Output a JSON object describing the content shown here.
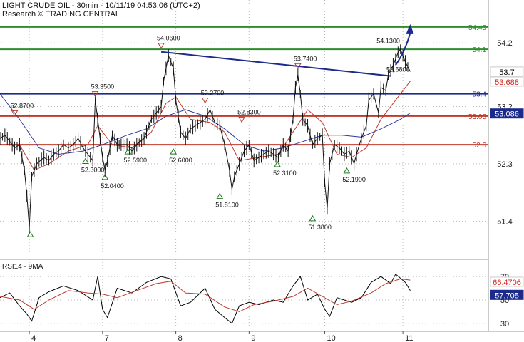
{
  "header": {
    "title": "LIGHT CRUDE OIL - 30min - 10/11/19 04:53:06 (UTC+2)",
    "source": "Research © TRADING CENTRAL"
  },
  "chart_data": [
    {
      "type": "candlestick-line",
      "title": "LIGHT CRUDE OIL - 30min - 10/11/19 04:53:06 (UTC+2)",
      "ylim": [
        50.9,
        54.65
      ],
      "y_ticks": [
        51.4,
        52.3,
        53.2,
        54.2
      ],
      "x_ticks": [
        {
          "label": "4",
          "pos": 0.06
        },
        {
          "label": "7",
          "pos": 0.21
        },
        {
          "label": "8",
          "pos": 0.36
        },
        {
          "label": "9",
          "pos": 0.51
        },
        {
          "label": "10",
          "pos": 0.665
        },
        {
          "label": "11",
          "pos": 0.825
        }
      ],
      "price_path": [
        [
          0.0,
          52.7
        ],
        [
          0.01,
          52.75
        ],
        [
          0.02,
          52.65
        ],
        [
          0.03,
          52.55
        ],
        [
          0.04,
          52.6
        ],
        [
          0.05,
          52.2
        ],
        [
          0.055,
          51.8
        ],
        [
          0.06,
          51.3
        ],
        [
          0.065,
          52.1
        ],
        [
          0.075,
          52.3
        ],
        [
          0.09,
          52.4
        ],
        [
          0.1,
          52.35
        ],
        [
          0.11,
          52.45
        ],
        [
          0.12,
          52.5
        ],
        [
          0.13,
          52.6
        ],
        [
          0.14,
          52.55
        ],
        [
          0.15,
          52.6
        ],
        [
          0.16,
          52.7
        ],
        [
          0.17,
          52.55
        ],
        [
          0.18,
          52.45
        ],
        [
          0.19,
          52.35
        ],
        [
          0.195,
          53.3
        ],
        [
          0.2,
          53.0
        ],
        [
          0.205,
          52.7
        ],
        [
          0.21,
          52.4
        ],
        [
          0.215,
          52.2
        ],
        [
          0.22,
          52.35
        ],
        [
          0.23,
          52.75
        ],
        [
          0.24,
          52.6
        ],
        [
          0.26,
          52.6
        ],
        [
          0.27,
          52.5
        ],
        [
          0.28,
          52.6
        ],
        [
          0.295,
          52.7
        ],
        [
          0.31,
          53.0
        ],
        [
          0.32,
          53.1
        ],
        [
          0.33,
          53.2
        ],
        [
          0.335,
          53.6
        ],
        [
          0.345,
          54.0
        ],
        [
          0.355,
          53.8
        ],
        [
          0.36,
          53.3
        ],
        [
          0.37,
          52.8
        ],
        [
          0.38,
          52.7
        ],
        [
          0.39,
          52.85
        ],
        [
          0.4,
          52.9
        ],
        [
          0.41,
          52.95
        ],
        [
          0.42,
          53.0
        ],
        [
          0.43,
          53.15
        ],
        [
          0.44,
          52.95
        ],
        [
          0.45,
          52.9
        ],
        [
          0.46,
          52.6
        ],
        [
          0.47,
          52.2
        ],
        [
          0.475,
          51.9
        ],
        [
          0.48,
          52.1
        ],
        [
          0.49,
          52.3
        ],
        [
          0.5,
          52.5
        ],
        [
          0.51,
          52.6
        ],
        [
          0.52,
          52.35
        ],
        [
          0.53,
          52.4
        ],
        [
          0.54,
          52.45
        ],
        [
          0.55,
          52.5
        ],
        [
          0.56,
          52.45
        ],
        [
          0.57,
          52.4
        ],
        [
          0.58,
          52.6
        ],
        [
          0.59,
          52.5
        ],
        [
          0.6,
          53.0
        ],
        [
          0.605,
          53.5
        ],
        [
          0.61,
          53.7
        ],
        [
          0.615,
          53.4
        ],
        [
          0.62,
          53.0
        ],
        [
          0.63,
          52.9
        ],
        [
          0.64,
          52.6
        ],
        [
          0.65,
          52.7
        ],
        [
          0.66,
          52.75
        ],
        [
          0.665,
          52.0
        ],
        [
          0.67,
          51.6
        ],
        [
          0.675,
          52.3
        ],
        [
          0.685,
          52.6
        ],
        [
          0.695,
          52.55
        ],
        [
          0.705,
          52.45
        ],
        [
          0.715,
          52.5
        ],
        [
          0.725,
          52.3
        ],
        [
          0.73,
          52.45
        ],
        [
          0.74,
          52.7
        ],
        [
          0.75,
          52.9
        ],
        [
          0.755,
          53.3
        ],
        [
          0.765,
          53.4
        ],
        [
          0.775,
          53.1
        ],
        [
          0.78,
          53.5
        ],
        [
          0.79,
          53.45
        ],
        [
          0.795,
          53.7
        ],
        [
          0.805,
          53.85
        ],
        [
          0.815,
          54.05
        ],
        [
          0.82,
          54.1
        ],
        [
          0.83,
          53.9
        ],
        [
          0.84,
          53.75
        ]
      ],
      "ma_red": [
        [
          0.0,
          52.6
        ],
        [
          0.04,
          52.6
        ],
        [
          0.07,
          52.2
        ],
        [
          0.1,
          52.3
        ],
        [
          0.14,
          52.5
        ],
        [
          0.18,
          52.6
        ],
        [
          0.2,
          52.9
        ],
        [
          0.23,
          52.6
        ],
        [
          0.27,
          52.55
        ],
        [
          0.31,
          52.8
        ],
        [
          0.34,
          53.25
        ],
        [
          0.36,
          53.35
        ],
        [
          0.39,
          53.0
        ],
        [
          0.43,
          52.95
        ],
        [
          0.46,
          52.8
        ],
        [
          0.49,
          52.35
        ],
        [
          0.53,
          52.4
        ],
        [
          0.57,
          52.45
        ],
        [
          0.6,
          52.8
        ],
        [
          0.63,
          53.15
        ],
        [
          0.66,
          52.95
        ],
        [
          0.69,
          52.45
        ],
        [
          0.72,
          52.4
        ],
        [
          0.75,
          52.55
        ],
        [
          0.78,
          53.0
        ],
        [
          0.81,
          53.3
        ],
        [
          0.84,
          53.6
        ]
      ],
      "ma_blue": [
        [
          0.0,
          53.4
        ],
        [
          0.04,
          53.0
        ],
        [
          0.08,
          52.55
        ],
        [
          0.12,
          52.45
        ],
        [
          0.17,
          52.5
        ],
        [
          0.21,
          52.6
        ],
        [
          0.26,
          52.75
        ],
        [
          0.3,
          52.85
        ],
        [
          0.34,
          53.05
        ],
        [
          0.38,
          53.15
        ],
        [
          0.42,
          53.05
        ],
        [
          0.46,
          52.85
        ],
        [
          0.5,
          52.6
        ],
        [
          0.54,
          52.5
        ],
        [
          0.58,
          52.55
        ],
        [
          0.62,
          52.65
        ],
        [
          0.66,
          52.75
        ],
        [
          0.7,
          52.75
        ],
        [
          0.74,
          52.72
        ],
        [
          0.78,
          52.85
        ],
        [
          0.82,
          53.0
        ],
        [
          0.84,
          53.1
        ]
      ],
      "levels": [
        {
          "value": 54.45,
          "label": "54.45",
          "color": "#2e8b2e"
        },
        {
          "value": 54.1,
          "label": "54.1",
          "color": "#2e8b2e"
        },
        {
          "value": 53.4,
          "label": "53.4",
          "color": "#1c2a8c"
        },
        {
          "value": 53.05,
          "label": "53.05",
          "color": "#c0392b"
        },
        {
          "value": 52.6,
          "label": "52.6",
          "color": "#c0392b"
        }
      ],
      "trendline": {
        "from": [
          0.33,
          54.06
        ],
        "to": [
          0.8,
          53.68
        ],
        "color": "#1c2a8c"
      },
      "arrow": {
        "from": [
          0.81,
          53.85
        ],
        "to": [
          0.84,
          54.45
        ],
        "color": "#1c2a8c"
      },
      "badges": [
        {
          "value": 53.7,
          "label": "53.7",
          "fg": "#000000",
          "bg": "#ffffff"
        },
        {
          "value": 53.688,
          "label": "53.688",
          "fg": "#d0261d",
          "bg": "#ffffff"
        },
        {
          "value": 53.086,
          "label": "53.086",
          "fg": "#ffffff",
          "bg": "#1c2a8c"
        }
      ],
      "annotations": [
        {
          "label": "52.8700",
          "x": 0.03,
          "y": 53.0,
          "kind": "high"
        },
        {
          "label": "53.3500",
          "x": 0.195,
          "y": 53.3,
          "kind": "high"
        },
        {
          "label": "54.0600",
          "x": 0.33,
          "y": 54.06,
          "kind": "high"
        },
        {
          "label": "53.2700",
          "x": 0.42,
          "y": 53.2,
          "kind": "high"
        },
        {
          "label": "52.8300",
          "x": 0.495,
          "y": 52.9,
          "kind": "high"
        },
        {
          "label": "53.7400",
          "x": 0.61,
          "y": 53.74,
          "kind": "high"
        },
        {
          "label": "54.1300",
          "x": 0.78,
          "y": 54.13,
          "kind": "text"
        },
        {
          "label": "53.6800",
          "x": 0.8,
          "y": 53.68,
          "kind": "text"
        },
        {
          "label": "",
          "x": 0.062,
          "y": 51.3,
          "kind": "low"
        },
        {
          "label": "52.3000",
          "x": 0.175,
          "y": 52.45,
          "kind": "low"
        },
        {
          "label": "52.0400",
          "x": 0.215,
          "y": 52.2,
          "kind": "low"
        },
        {
          "label": "52.5900",
          "x": 0.262,
          "y": 52.6,
          "kind": "low"
        },
        {
          "label": "52.6000",
          "x": 0.355,
          "y": 52.6,
          "kind": "low"
        },
        {
          "label": "51.8100",
          "x": 0.45,
          "y": 51.9,
          "kind": "low"
        },
        {
          "label": "52.3100",
          "x": 0.568,
          "y": 52.4,
          "kind": "low"
        },
        {
          "label": "51.3800",
          "x": 0.64,
          "y": 51.55,
          "kind": "low"
        },
        {
          "label": "52.1900",
          "x": 0.71,
          "y": 52.3,
          "kind": "low"
        }
      ]
    },
    {
      "type": "line",
      "title": "RSI14 - 9MA",
      "ylim": [
        25,
        78
      ],
      "y_ticks": [
        30,
        50,
        70
      ],
      "series": [
        {
          "color": "#000000",
          "values": [
            [
              0.0,
              52
            ],
            [
              0.02,
              56
            ],
            [
              0.04,
              45
            ],
            [
              0.055,
              38
            ],
            [
              0.065,
              32
            ],
            [
              0.08,
              52
            ],
            [
              0.1,
              57
            ],
            [
              0.13,
              62
            ],
            [
              0.16,
              58
            ],
            [
              0.19,
              50
            ],
            [
              0.2,
              70
            ],
            [
              0.21,
              42
            ],
            [
              0.22,
              35
            ],
            [
              0.24,
              60
            ],
            [
              0.27,
              56
            ],
            [
              0.3,
              65
            ],
            [
              0.33,
              70
            ],
            [
              0.35,
              68
            ],
            [
              0.37,
              45
            ],
            [
              0.39,
              48
            ],
            [
              0.42,
              60
            ],
            [
              0.44,
              42
            ],
            [
              0.46,
              35
            ],
            [
              0.475,
              30
            ],
            [
              0.49,
              45
            ],
            [
              0.51,
              48
            ],
            [
              0.53,
              46
            ],
            [
              0.56,
              50
            ],
            [
              0.58,
              48
            ],
            [
              0.6,
              62
            ],
            [
              0.615,
              70
            ],
            [
              0.63,
              50
            ],
            [
              0.65,
              55
            ],
            [
              0.665,
              42
            ],
            [
              0.675,
              36
            ],
            [
              0.69,
              52
            ],
            [
              0.72,
              48
            ],
            [
              0.74,
              52
            ],
            [
              0.76,
              65
            ],
            [
              0.78,
              70
            ],
            [
              0.8,
              64
            ],
            [
              0.81,
              72
            ],
            [
              0.83,
              65
            ],
            [
              0.84,
              58
            ]
          ]
        },
        {
          "color": "#c0392b",
          "values": [
            [
              0.0,
              53
            ],
            [
              0.04,
              50
            ],
            [
              0.07,
              42
            ],
            [
              0.1,
              50
            ],
            [
              0.14,
              58
            ],
            [
              0.18,
              56
            ],
            [
              0.21,
              55
            ],
            [
              0.24,
              52
            ],
            [
              0.28,
              58
            ],
            [
              0.32,
              64
            ],
            [
              0.35,
              66
            ],
            [
              0.38,
              56
            ],
            [
              0.42,
              55
            ],
            [
              0.46,
              44
            ],
            [
              0.49,
              40
            ],
            [
              0.52,
              46
            ],
            [
              0.56,
              49
            ],
            [
              0.6,
              53
            ],
            [
              0.63,
              60
            ],
            [
              0.66,
              53
            ],
            [
              0.69,
              46
            ],
            [
              0.72,
              49
            ],
            [
              0.76,
              56
            ],
            [
              0.79,
              64
            ],
            [
              0.82,
              68
            ],
            [
              0.84,
              67
            ]
          ]
        }
      ],
      "badges": [
        {
          "value": 66.47,
          "label": "66.4706",
          "fg": "#d0261d",
          "bg": "#ffffff"
        },
        {
          "value": 57.705,
          "label": "57.705",
          "fg": "#ffffff",
          "bg": "#1c2a8c"
        }
      ]
    }
  ]
}
